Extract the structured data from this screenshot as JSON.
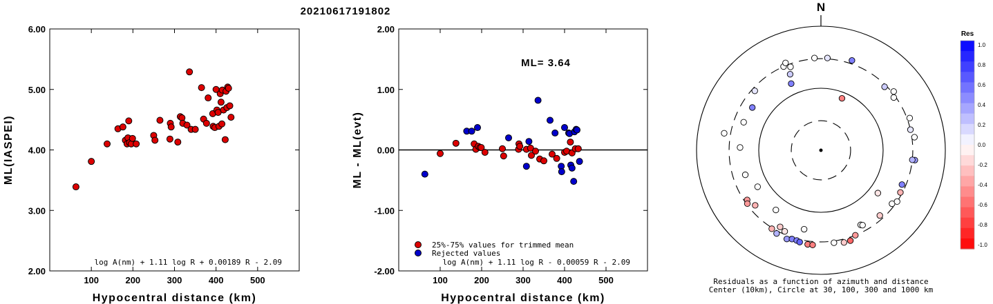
{
  "event_id": "20210617191802",
  "colors": {
    "accepted": "#dd0000",
    "rejected": "#0000cc",
    "res_positive": "#0000ff",
    "res_negative": "#ff0000"
  },
  "chart_data": [
    {
      "type": "scatter",
      "id": "panel-ml",
      "xlabel": "Hypocentral distance (km)",
      "ylabel": "ML(IASPEI)",
      "xlim": [
        0,
        600
      ],
      "ylim": [
        2.0,
        6.0
      ],
      "xticks": [
        "100",
        "200",
        "300",
        "400",
        "500"
      ],
      "yticks": [
        "2.00",
        "3.00",
        "4.00",
        "5.00",
        "6.00"
      ],
      "formula": "log A(nm) + 1.11 log R + 0.00189 R - 2.09",
      "points": [
        {
          "x": 63,
          "y": 3.39
        },
        {
          "x": 100,
          "y": 3.81
        },
        {
          "x": 138,
          "y": 4.1
        },
        {
          "x": 164,
          "y": 4.35
        },
        {
          "x": 176,
          "y": 4.38
        },
        {
          "x": 182,
          "y": 4.16
        },
        {
          "x": 186,
          "y": 4.1
        },
        {
          "x": 188,
          "y": 4.2
        },
        {
          "x": 190,
          "y": 4.48
        },
        {
          "x": 192,
          "y": 4.12
        },
        {
          "x": 196,
          "y": 4.1
        },
        {
          "x": 199,
          "y": 4.19
        },
        {
          "x": 208,
          "y": 4.1
        },
        {
          "x": 250,
          "y": 4.24
        },
        {
          "x": 253,
          "y": 4.16
        },
        {
          "x": 265,
          "y": 4.49
        },
        {
          "x": 289,
          "y": 4.18
        },
        {
          "x": 290,
          "y": 4.44
        },
        {
          "x": 292,
          "y": 4.38
        },
        {
          "x": 308,
          "y": 4.13
        },
        {
          "x": 314,
          "y": 4.55
        },
        {
          "x": 318,
          "y": 4.53
        },
        {
          "x": 320,
          "y": 4.44
        },
        {
          "x": 330,
          "y": 4.41
        },
        {
          "x": 336,
          "y": 5.29
        },
        {
          "x": 340,
          "y": 4.34
        },
        {
          "x": 350,
          "y": 4.34
        },
        {
          "x": 365,
          "y": 5.03
        },
        {
          "x": 370,
          "y": 4.51
        },
        {
          "x": 377,
          "y": 4.44
        },
        {
          "x": 381,
          "y": 4.86
        },
        {
          "x": 392,
          "y": 4.6
        },
        {
          "x": 393,
          "y": 4.39
        },
        {
          "x": 397,
          "y": 4.37
        },
        {
          "x": 400,
          "y": 5.0
        },
        {
          "x": 402,
          "y": 4.66
        },
        {
          "x": 405,
          "y": 4.62
        },
        {
          "x": 407,
          "y": 4.39
        },
        {
          "x": 410,
          "y": 4.93
        },
        {
          "x": 412,
          "y": 4.79
        },
        {
          "x": 414,
          "y": 4.43
        },
        {
          "x": 415,
          "y": 4.99
        },
        {
          "x": 418,
          "y": 4.66
        },
        {
          "x": 422,
          "y": 4.17
        },
        {
          "x": 424,
          "y": 4.97
        },
        {
          "x": 426,
          "y": 4.7
        },
        {
          "x": 428,
          "y": 5.04
        },
        {
          "x": 430,
          "y": 5.02
        },
        {
          "x": 433,
          "y": 4.73
        },
        {
          "x": 436,
          "y": 4.54
        }
      ]
    },
    {
      "type": "scatter",
      "id": "panel-residual",
      "xlabel": "Hypocentral distance (km)",
      "ylabel": "ML - ML(evt)",
      "xlim": [
        0,
        600
      ],
      "ylim": [
        -2.0,
        2.0
      ],
      "xticks": [
        "100",
        "200",
        "300",
        "400",
        "500"
      ],
      "yticks": [
        "-2.00",
        "-1.00",
        "0.00",
        "1.00",
        "2.00"
      ],
      "annotation": "ML= 3.64",
      "legend": {
        "placement": "bottom-left",
        "entries": [
          "25%-75% values for trimmed mean",
          "Rejected values"
        ]
      },
      "formula": "log A(nm) + 1.11 log R - 0.00059 R - 2.09",
      "series": [
        {
          "name": "25%-75% values for trimmed mean",
          "points": [
            {
              "x": 100,
              "y": -0.06
            },
            {
              "x": 138,
              "y": 0.11
            },
            {
              "x": 182,
              "y": 0.1
            },
            {
              "x": 186,
              "y": 0.01
            },
            {
              "x": 192,
              "y": 0.06
            },
            {
              "x": 196,
              "y": 0.04
            },
            {
              "x": 199,
              "y": 0.04
            },
            {
              "x": 208,
              "y": -0.04
            },
            {
              "x": 250,
              "y": 0.02
            },
            {
              "x": 253,
              "y": -0.1
            },
            {
              "x": 289,
              "y": 0.01
            },
            {
              "x": 290,
              "y": 0.1
            },
            {
              "x": 292,
              "y": 0.06
            },
            {
              "x": 308,
              "y": 0.01
            },
            {
              "x": 318,
              "y": 0.03
            },
            {
              "x": 320,
              "y": -0.09
            },
            {
              "x": 330,
              "y": -0.02
            },
            {
              "x": 340,
              "y": -0.15
            },
            {
              "x": 350,
              "y": -0.18
            },
            {
              "x": 370,
              "y": -0.07
            },
            {
              "x": 381,
              "y": -0.14
            },
            {
              "x": 400,
              "y": -0.04
            },
            {
              "x": 405,
              "y": -0.02
            },
            {
              "x": 414,
              "y": 0.13
            },
            {
              "x": 418,
              "y": -0.05
            },
            {
              "x": 426,
              "y": 0.02
            },
            {
              "x": 433,
              "y": 0.02
            }
          ]
        },
        {
          "name": "Rejected values",
          "points": [
            {
              "x": 63,
              "y": -0.4
            },
            {
              "x": 164,
              "y": 0.31
            },
            {
              "x": 176,
              "y": 0.31
            },
            {
              "x": 190,
              "y": 0.37
            },
            {
              "x": 265,
              "y": 0.2
            },
            {
              "x": 308,
              "y": -0.27
            },
            {
              "x": 314,
              "y": 0.14
            },
            {
              "x": 336,
              "y": 0.82
            },
            {
              "x": 365,
              "y": 0.49
            },
            {
              "x": 377,
              "y": 0.28
            },
            {
              "x": 392,
              "y": -0.27
            },
            {
              "x": 393,
              "y": -0.36
            },
            {
              "x": 400,
              "y": 0.37
            },
            {
              "x": 410,
              "y": 0.28
            },
            {
              "x": 412,
              "y": 0.27
            },
            {
              "x": 415,
              "y": -0.25
            },
            {
              "x": 418,
              "y": -0.3
            },
            {
              "x": 422,
              "y": -0.52
            },
            {
              "x": 424,
              "y": 0.3
            },
            {
              "x": 428,
              "y": 0.34
            },
            {
              "x": 430,
              "y": 0.33
            },
            {
              "x": 436,
              "y": -0.19
            }
          ]
        }
      ]
    },
    {
      "type": "scatter",
      "id": "panel-polar",
      "north_label": "N",
      "rings_km": [
        10,
        30,
        100,
        300,
        1000
      ],
      "caption_line1": "Residuals as a function of azimuth and distance",
      "caption_line2": "Center (10km), Circle at 30, 100, 300 and 1000 km",
      "colorbar": {
        "title": "Res",
        "ticks": [
          "1.0",
          "0.8",
          "0.6",
          "0.4",
          "0.2",
          "0.0",
          "-0.2",
          "-0.4",
          "-0.6",
          "-0.8",
          "-1.0"
        ]
      },
      "points": [
        {
          "az": 336,
          "dist": 300,
          "res": 0.0
        },
        {
          "az": 338,
          "dist": 330,
          "res": 0.0
        },
        {
          "az": 340,
          "dist": 270,
          "res": 0.0
        },
        {
          "az": 356,
          "dist": 310,
          "res": 0.0
        },
        {
          "az": 4,
          "dist": 310,
          "res": 0.1
        },
        {
          "az": 19,
          "dist": 340,
          "res": 0.5
        },
        {
          "az": 338,
          "dist": 210,
          "res": 0.2
        },
        {
          "az": 336,
          "dist": 150,
          "res": 0.5
        },
        {
          "az": 312,
          "dist": 270,
          "res": 0.1
        },
        {
          "az": 302,
          "dist": 200,
          "res": 0.5
        },
        {
          "az": 290,
          "dist": 210,
          "res": 0.0
        },
        {
          "az": 280,
          "dist": 380,
          "res": 0.0
        },
        {
          "az": 272,
          "dist": 200,
          "res": 0.0
        },
        {
          "az": 252,
          "dist": 190,
          "res": 0.0
        },
        {
          "az": 240,
          "dist": 150,
          "res": 0.0
        },
        {
          "az": 236,
          "dist": 270,
          "res": -0.4
        },
        {
          "az": 234,
          "dist": 290,
          "res": -0.4
        },
        {
          "az": 230,
          "dist": 240,
          "res": -0.3
        },
        {
          "az": 217,
          "dist": 160,
          "res": 0.0
        },
        {
          "az": 212,
          "dist": 310,
          "res": -0.3
        },
        {
          "az": 208,
          "dist": 330,
          "res": 0.3
        },
        {
          "az": 208,
          "dist": 250,
          "res": -0.2
        },
        {
          "az": 204,
          "dist": 270,
          "res": -0.1
        },
        {
          "az": 201,
          "dist": 340,
          "res": 0.4
        },
        {
          "az": 198,
          "dist": 320,
          "res": 0.5
        },
        {
          "az": 195,
          "dist": 320,
          "res": 0.5
        },
        {
          "az": 193,
          "dist": 330,
          "res": 0.6
        },
        {
          "az": 192,
          "dist": 200,
          "res": 0.0
        },
        {
          "az": 188,
          "dist": 340,
          "res": -0.5
        },
        {
          "az": 185,
          "dist": 340,
          "res": -0.5
        },
        {
          "az": 172,
          "dist": 320,
          "res": 0.0
        },
        {
          "az": 166,
          "dist": 340,
          "res": -0.2
        },
        {
          "az": 162,
          "dist": 340,
          "res": -0.6
        },
        {
          "az": 158,
          "dist": 300,
          "res": -0.4
        },
        {
          "az": 152,
          "dist": 230,
          "res": 0.0
        },
        {
          "az": 151,
          "dist": 240,
          "res": 0.0
        },
        {
          "az": 138,
          "dist": 260,
          "res": -0.2
        },
        {
          "az": 127,
          "dist": 270,
          "res": 0.0
        },
        {
          "az": 124,
          "dist": 300,
          "res": 0.0
        },
        {
          "az": 118,
          "dist": 280,
          "res": -0.3
        },
        {
          "az": 113,
          "dist": 260,
          "res": 0.5
        },
        {
          "az": 96,
          "dist": 330,
          "res": 0.4
        },
        {
          "az": 96,
          "dist": 300,
          "res": 0.3
        },
        {
          "az": 82,
          "dist": 330,
          "res": 0.0
        },
        {
          "az": 77,
          "dist": 300,
          "res": 0.1
        },
        {
          "az": 70,
          "dist": 330,
          "res": 0.0
        },
        {
          "az": 54,
          "dist": 280,
          "res": 0.0
        },
        {
          "az": 51,
          "dist": 320,
          "res": 0.0
        },
        {
          "az": 45,
          "dist": 280,
          "res": 0.2
        },
        {
          "az": 127,
          "dist": 140,
          "res": -0.1
        },
        {
          "az": 22,
          "dist": 80,
          "res": -0.5
        }
      ]
    }
  ]
}
